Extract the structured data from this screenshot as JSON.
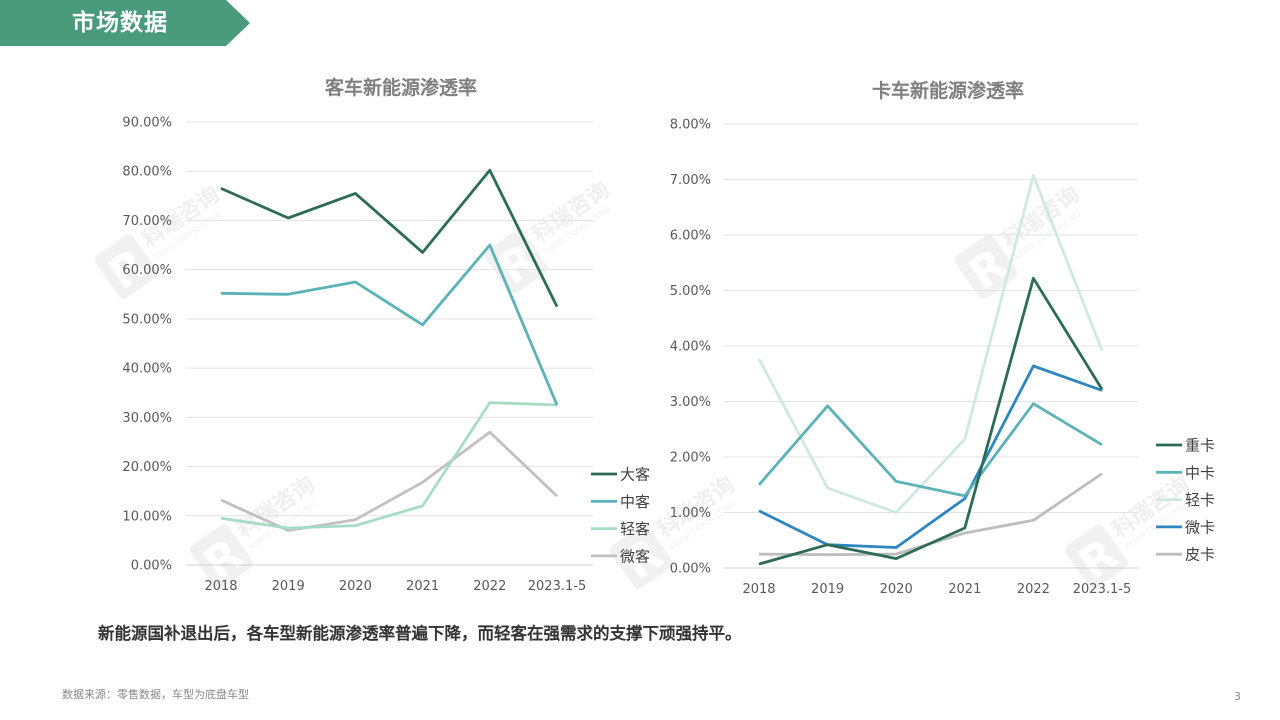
{
  "header": {
    "title": "市场数据",
    "color": "#4A9A7C"
  },
  "watermark": {
    "text": "科瑞咨询",
    "subtext": "KERUI CONSULTING",
    "logo_letter": "R"
  },
  "footer": {
    "summary": "新能源国补退出后，各车型新能源渗透率普遍下降，而轻客在强需求的支撑下顽强持平。",
    "source": "数据来源：零售数据，车型为底盘车型",
    "page_number": "3"
  },
  "chart_data": [
    {
      "type": "line",
      "title": "客车新能源渗透率",
      "categories": [
        "2018",
        "2019",
        "2020",
        "2021",
        "2022",
        "2023.1-5"
      ],
      "ylim": [
        0,
        90
      ],
      "yticks": [
        "0.00%",
        "10.00%",
        "20.00%",
        "30.00%",
        "40.00%",
        "50.00%",
        "60.00%",
        "70.00%",
        "80.00%",
        "90.00%"
      ],
      "grid": true,
      "legend_position": "right",
      "series": [
        {
          "name": "大客",
          "color": "#2E6B57",
          "values": [
            76.5,
            70.5,
            75.5,
            63.5,
            80.2,
            52.5
          ]
        },
        {
          "name": "中客",
          "color": "#5BB3B7",
          "values": [
            55.2,
            55.0,
            57.5,
            48.8,
            65.0,
            32.5
          ]
        },
        {
          "name": "轻客",
          "color": "#A6DCC6",
          "values": [
            9.5,
            7.5,
            8.0,
            12.0,
            33.0,
            32.5
          ]
        },
        {
          "name": "微客",
          "color": "#C0C0C0",
          "values": [
            13.2,
            7.0,
            9.2,
            16.8,
            27.0,
            14.0
          ]
        }
      ]
    },
    {
      "type": "line",
      "title": "卡车新能源渗透率",
      "categories": [
        "2018",
        "2019",
        "2020",
        "2021",
        "2022",
        "2023.1-5"
      ],
      "ylim": [
        0,
        8
      ],
      "yticks": [
        "0.00%",
        "1.00%",
        "2.00%",
        "3.00%",
        "4.00%",
        "5.00%",
        "6.00%",
        "7.00%",
        "8.00%"
      ],
      "grid": true,
      "legend_position": "right",
      "series": [
        {
          "name": "重卡",
          "color": "#2E6B57",
          "values": [
            0.07,
            0.42,
            0.17,
            0.72,
            5.22,
            3.22
          ]
        },
        {
          "name": "中卡",
          "color": "#5BB3B7",
          "values": [
            1.5,
            2.92,
            1.56,
            1.3,
            2.96,
            2.22
          ]
        },
        {
          "name": "轻卡",
          "color": "#CFE9DF",
          "values": [
            3.77,
            1.44,
            1.0,
            2.32,
            7.07,
            3.92
          ]
        },
        {
          "name": "微卡",
          "color": "#2E86C1",
          "values": [
            1.03,
            0.42,
            0.37,
            1.25,
            3.64,
            3.2
          ]
        },
        {
          "name": "皮卡",
          "color": "#BDBDBD",
          "values": [
            0.25,
            0.24,
            0.25,
            0.63,
            0.86,
            1.7
          ]
        }
      ]
    }
  ]
}
